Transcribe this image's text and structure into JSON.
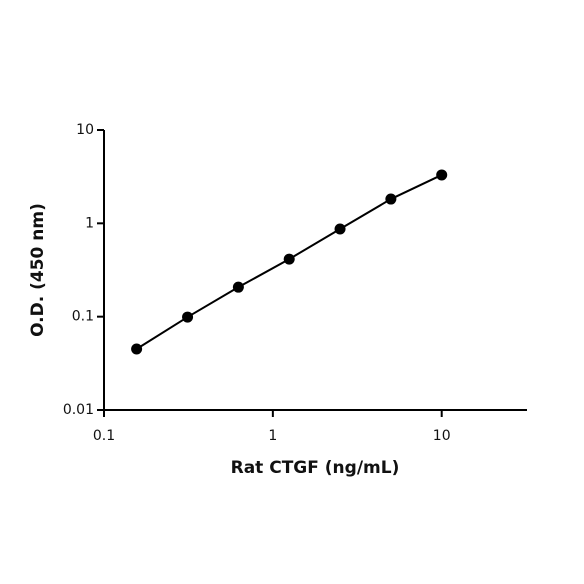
{
  "chart_data": {
    "type": "scatter",
    "x_label": "Rat CTGF (ng/mL)",
    "y_label": "O.D. (450 nm)",
    "x": [
      0.156,
      0.3125,
      0.625,
      1.25,
      2.5,
      5,
      10
    ],
    "series": [
      {
        "color": "#000000",
        "values": [
          0.045,
          0.099,
          0.207,
          0.414,
          0.87,
          1.82,
          3.3
        ]
      }
    ],
    "xscale": "log",
    "yscale": "log",
    "connect": true,
    "xlim": [
      0.1,
      32
    ],
    "ylim": [
      0.01,
      10
    ],
    "xticks": [
      0.1,
      1,
      10
    ],
    "yticks": [
      0.01,
      0.1,
      1,
      10
    ]
  }
}
